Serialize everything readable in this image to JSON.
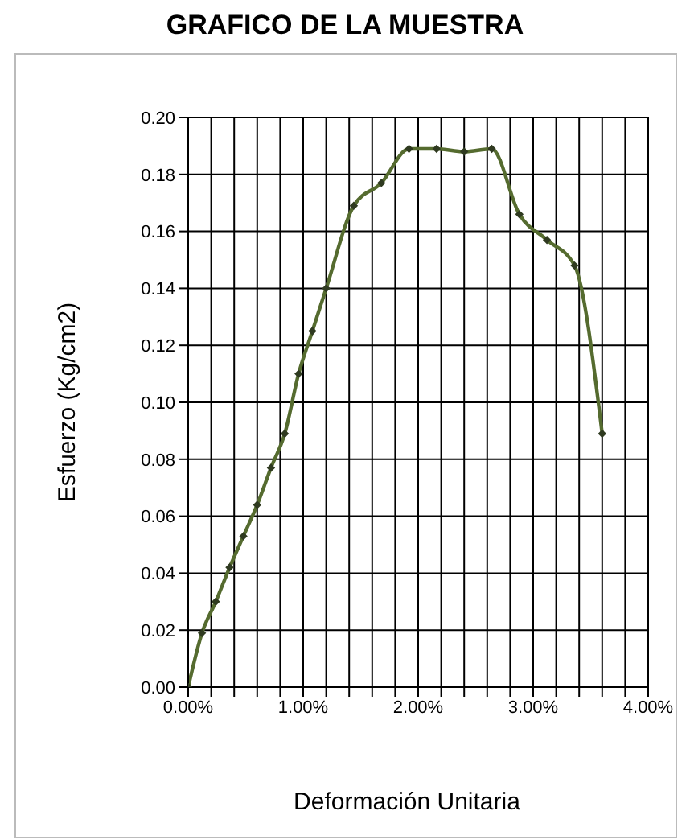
{
  "chart_data": {
    "type": "line",
    "title": "GRAFICO DE LA MUESTRA",
    "xlabel": "Deformación Unitaria",
    "ylabel": "Esfuerzo (Kg/cm2)",
    "x": [
      0,
      0.12,
      0.24,
      0.36,
      0.48,
      0.6,
      0.72,
      0.84,
      0.96,
      1.08,
      1.2,
      1.44,
      1.68,
      1.92,
      2.16,
      2.4,
      2.64,
      2.88,
      3.12,
      3.36,
      3.6
    ],
    "series": [
      {
        "color": "#556b2f",
        "values": [
          0,
          0.019,
          0.03,
          0.042,
          0.053,
          0.064,
          0.077,
          0.089,
          0.11,
          0.125,
          0.14,
          0.169,
          0.177,
          0.189,
          0.189,
          0.188,
          0.189,
          0.166,
          0.157,
          0.148,
          0.089
        ]
      }
    ],
    "xlim": [
      0,
      4
    ],
    "ylim": [
      0,
      0.2
    ],
    "xticks": [
      {
        "value": 0,
        "label": "0.00%"
      },
      {
        "value": 0.2,
        "label": null
      },
      {
        "value": 0.4,
        "label": null
      },
      {
        "value": 0.6,
        "label": null
      },
      {
        "value": 0.8,
        "label": null
      },
      {
        "value": 1,
        "label": "1.00%"
      },
      {
        "value": 1.2,
        "label": null
      },
      {
        "value": 1.4,
        "label": null
      },
      {
        "value": 1.6,
        "label": null
      },
      {
        "value": 1.8,
        "label": null
      },
      {
        "value": 2,
        "label": "2.00%"
      },
      {
        "value": 2.2,
        "label": null
      },
      {
        "value": 2.4,
        "label": null
      },
      {
        "value": 2.6,
        "label": null
      },
      {
        "value": 2.8,
        "label": null
      },
      {
        "value": 3,
        "label": "3.00%"
      },
      {
        "value": 3.2,
        "label": null
      },
      {
        "value": 3.4,
        "label": null
      },
      {
        "value": 3.6,
        "label": null
      },
      {
        "value": 3.8,
        "label": null
      },
      {
        "value": 4,
        "label": "4.00%"
      }
    ],
    "yticks": [
      {
        "value": 0,
        "label": "0.00"
      },
      {
        "value": 0.02,
        "label": "0.02"
      },
      {
        "value": 0.04,
        "label": "0.04"
      },
      {
        "value": 0.06,
        "label": "0.06"
      },
      {
        "value": 0.08,
        "label": "0.08"
      },
      {
        "value": 0.1,
        "label": "0.10"
      },
      {
        "value": 0.12,
        "label": "0.12"
      },
      {
        "value": 0.14,
        "label": "0.14"
      },
      {
        "value": 0.16,
        "label": "0.16"
      },
      {
        "value": 0.18,
        "label": "0.18"
      },
      {
        "value": 0.2,
        "label": "0.20"
      }
    ],
    "grid": true,
    "marker": "diamond",
    "line_style": "solid"
  }
}
